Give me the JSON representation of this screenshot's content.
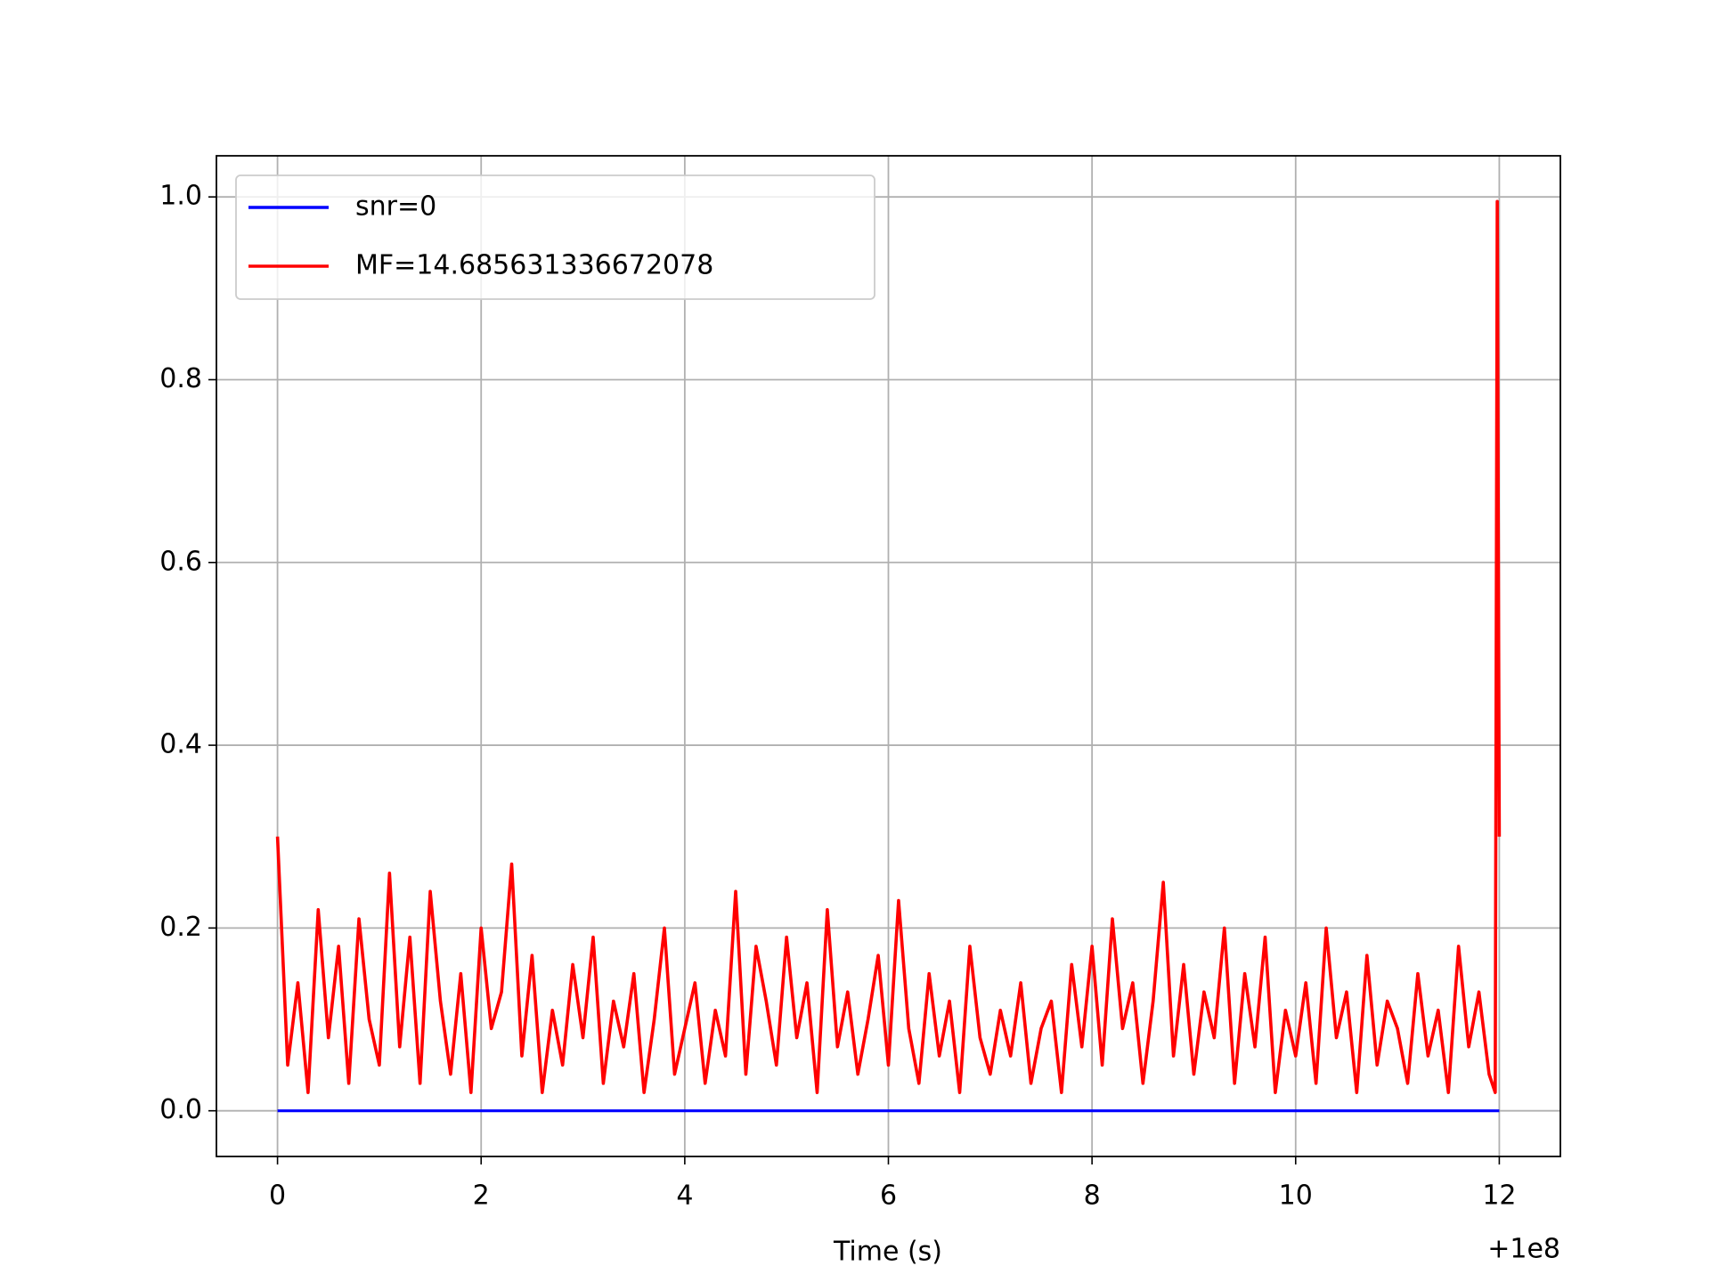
{
  "chart_data": {
    "type": "line",
    "xlabel": "Time (s)",
    "x_offset_label": "+1e8",
    "xlim": [
      -0.6,
      12.6
    ],
    "xticks": [
      0,
      2,
      4,
      6,
      8,
      10,
      12
    ],
    "ylim": [
      -0.05,
      1.045
    ],
    "yticks": [
      {
        "value": 0,
        "label": "0.0"
      },
      0.2,
      0.4,
      0.6,
      0.8,
      {
        "value": 1,
        "label": "1.0"
      }
    ],
    "grid": true,
    "legend": "upper left",
    "series": [
      {
        "name": "snr=0",
        "color": "#0000ff",
        "x": [
          0,
          12
        ],
        "values": [
          0,
          0
        ]
      },
      {
        "name": "MF=14.685631336672078",
        "color": "#ff0000",
        "x": [
          0,
          0.1,
          0.2,
          0.3,
          0.4,
          0.5,
          0.6,
          0.7,
          0.8,
          0.9,
          1,
          1.1,
          1.2,
          1.3,
          1.4,
          1.5,
          1.6,
          1.7,
          1.8,
          1.9,
          2,
          2.1,
          2.2,
          2.3,
          2.4,
          2.5,
          2.6,
          2.7,
          2.8,
          2.9,
          3,
          3.1,
          3.2,
          3.3,
          3.4,
          3.5,
          3.6,
          3.7,
          3.8,
          3.9,
          4,
          4.1,
          4.2,
          4.3,
          4.4,
          4.5,
          4.6,
          4.7,
          4.8,
          4.9,
          5,
          5.1,
          5.2,
          5.3,
          5.4,
          5.5,
          5.6,
          5.7,
          5.8,
          5.9,
          6,
          6.1,
          6.2,
          6.3,
          6.4,
          6.5,
          6.6,
          6.7,
          6.8,
          6.9,
          7,
          7.1,
          7.2,
          7.3,
          7.4,
          7.5,
          7.6,
          7.7,
          7.8,
          7.9,
          8,
          8.1,
          8.2,
          8.3,
          8.4,
          8.5,
          8.6,
          8.7,
          8.8,
          8.9,
          9,
          9.1,
          9.2,
          9.3,
          9.4,
          9.5,
          9.6,
          9.7,
          9.8,
          9.9,
          10,
          10.1,
          10.2,
          10.3,
          10.4,
          10.5,
          10.6,
          10.7,
          10.8,
          10.9,
          11,
          11.1,
          11.2,
          11.3,
          11.4,
          11.5,
          11.6,
          11.7,
          11.8,
          11.9,
          11.96,
          11.98,
          12
        ],
        "values": [
          0.3,
          0.05,
          0.14,
          0.02,
          0.22,
          0.08,
          0.18,
          0.03,
          0.21,
          0.1,
          0.05,
          0.26,
          0.07,
          0.19,
          0.03,
          0.24,
          0.12,
          0.04,
          0.15,
          0.02,
          0.2,
          0.09,
          0.13,
          0.27,
          0.06,
          0.17,
          0.02,
          0.11,
          0.05,
          0.16,
          0.08,
          0.19,
          0.03,
          0.12,
          0.07,
          0.15,
          0.02,
          0.1,
          0.2,
          0.04,
          0.09,
          0.14,
          0.03,
          0.11,
          0.06,
          0.24,
          0.04,
          0.18,
          0.12,
          0.05,
          0.19,
          0.08,
          0.14,
          0.02,
          0.22,
          0.07,
          0.13,
          0.04,
          0.1,
          0.17,
          0.05,
          0.23,
          0.09,
          0.03,
          0.15,
          0.06,
          0.12,
          0.02,
          0.18,
          0.08,
          0.04,
          0.11,
          0.06,
          0.14,
          0.03,
          0.09,
          0.12,
          0.02,
          0.16,
          0.07,
          0.18,
          0.05,
          0.21,
          0.09,
          0.14,
          0.03,
          0.12,
          0.25,
          0.06,
          0.16,
          0.04,
          0.13,
          0.08,
          0.2,
          0.03,
          0.15,
          0.07,
          0.19,
          0.02,
          0.11,
          0.06,
          0.14,
          0.03,
          0.2,
          0.08,
          0.13,
          0.02,
          0.17,
          0.05,
          0.12,
          0.09,
          0.03,
          0.15,
          0.06,
          0.11,
          0.02,
          0.18,
          0.07,
          0.13,
          0.04,
          0.02,
          0.995,
          0.3
        ]
      }
    ]
  }
}
